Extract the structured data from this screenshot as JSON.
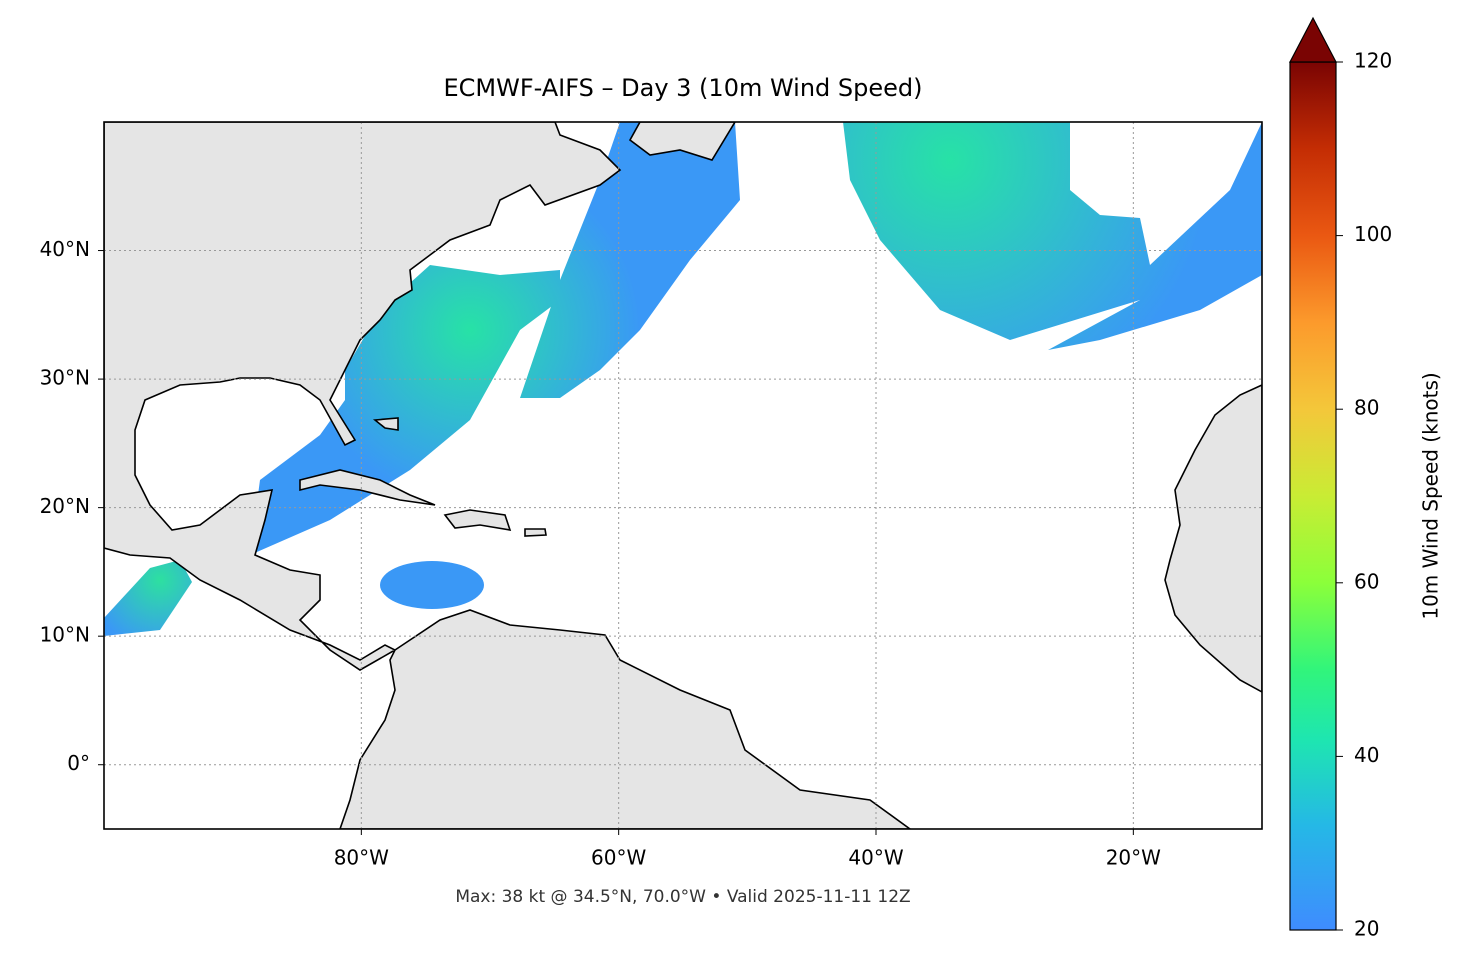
{
  "title": "ECMWF-AIFS – Day 3 (10m Wind Speed)",
  "footer": "Max: 38 kt @ 34.5°N, 70.0°W • Valid 2025-11-11 12Z",
  "map": {
    "xlim": [
      -100,
      -10
    ],
    "ylim": [
      -5,
      50
    ],
    "xticks": [
      {
        "value": -80,
        "label": "80°W"
      },
      {
        "value": -60,
        "label": "60°W"
      },
      {
        "value": -40,
        "label": "40°W"
      },
      {
        "value": -20,
        "label": "20°W"
      }
    ],
    "yticks": [
      {
        "value": 0,
        "label": "0°"
      },
      {
        "value": 10,
        "label": "10°N"
      },
      {
        "value": 20,
        "label": "20°N"
      },
      {
        "value": 30,
        "label": "30°N"
      },
      {
        "value": 40,
        "label": "40°N"
      }
    ],
    "grid": true
  },
  "colorbar": {
    "label": "10m Wind Speed (knots)",
    "lim": [
      20,
      120
    ],
    "ticks": [
      20,
      40,
      60,
      80,
      100,
      120
    ]
  }
}
